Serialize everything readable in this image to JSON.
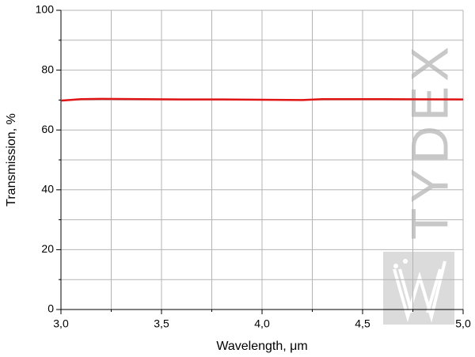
{
  "chart_data": {
    "type": "line",
    "watermark": "TYDEX",
    "xlabel": "Wavelength, μm",
    "ylabel": "Transmission, %",
    "x": [
      3.0,
      3.1,
      3.2,
      3.4,
      3.6,
      3.8,
      4.0,
      4.2,
      4.3,
      4.6,
      5.0
    ],
    "series": [
      {
        "color": "#e01515",
        "values": [
          69.8,
          70.3,
          70.4,
          70.3,
          70.2,
          70.2,
          70.1,
          70.0,
          70.3,
          70.3,
          70.2
        ]
      }
    ],
    "xlim": [
      3,
      5
    ],
    "ylim": [
      0,
      100
    ],
    "xticks": [
      {
        "value": 3,
        "label": "3,0"
      },
      {
        "value": 3.5,
        "label": "3,5"
      },
      {
        "value": 4,
        "label": "4,0"
      },
      {
        "value": 4.5,
        "label": "4,5"
      },
      {
        "value": 5,
        "label": "5,0"
      }
    ],
    "yticks": [
      0,
      20,
      40,
      60,
      80,
      100
    ],
    "xminorticks": [
      3.25,
      3.75,
      4.25,
      4.75
    ],
    "yminorticks": [
      10,
      30,
      50,
      70,
      90
    ],
    "grid": true
  }
}
